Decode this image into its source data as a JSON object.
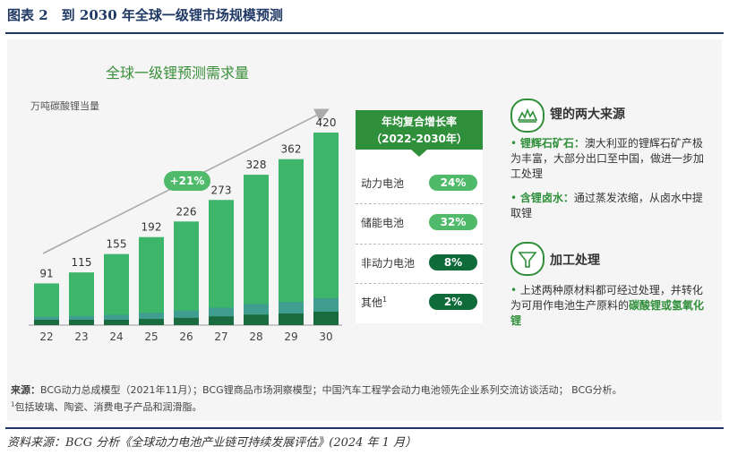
{
  "figure": {
    "title": "图表 2　到 2030 年全球一级锂市场规模预测",
    "source": "资料来源：BCG 分析《全球动力电池产业链可持续发展评估》(2024 年 1 月）"
  },
  "chart_data": {
    "type": "bar",
    "title": "全球一级锂预测需求量",
    "ylabel": "万吨碳酸锂当量",
    "categories": [
      "22",
      "23",
      "24",
      "25",
      "26",
      "27",
      "28",
      "29",
      "30"
    ],
    "values": [
      91,
      115,
      155,
      192,
      226,
      273,
      328,
      362,
      420
    ],
    "ylim": [
      0,
      450
    ],
    "growth_badge": "+21%",
    "colors": {
      "bar": "#3db56a",
      "bar_top": "#5cc47e",
      "base_dark": "#1a6b40",
      "teal": "#3f9e8f"
    }
  },
  "growth_table": {
    "title_line1": "年均复合增长率",
    "title_line2": "（2022-2030年）",
    "rows": [
      {
        "label": "动力电池",
        "value": "24%",
        "color": "#4fba6a"
      },
      {
        "label": "储能电池",
        "value": "32%",
        "color": "#4fba6a"
      },
      {
        "label": "非动力电池",
        "value": "8%",
        "color": "#0f6b3a"
      },
      {
        "label": "其他",
        "sup": "1",
        "value": "2%",
        "color": "#0f6b3a"
      }
    ]
  },
  "sources_section": {
    "heading": "锂的两大来源",
    "items": [
      {
        "bold": "锂辉石矿石：",
        "text": "澳大利亚的锂辉石矿产极为丰富，大部分出口至中国，做进一步加工处理"
      },
      {
        "bold": "含锂卤水：",
        "text": "通过蒸发浓缩，从卤水中提取锂"
      }
    ]
  },
  "processing_section": {
    "heading": "加工处理",
    "text": "上述两种原材料都可经过处理，并转化为可用作电池生产原料的",
    "highlight": "碳酸锂或氢氧化锂"
  },
  "notes": {
    "source_label": "来源：",
    "source_text": "BCG动力总成模型（2021年11月）；BCG锂商品市场洞察模型；中国汽车工程学会动力电池领先企业系列交流访谈活动； BCG分析。",
    "footnote_sup": "1",
    "footnote_text": "包括玻璃、陶瓷、消费电子产品和润滑脂。"
  }
}
